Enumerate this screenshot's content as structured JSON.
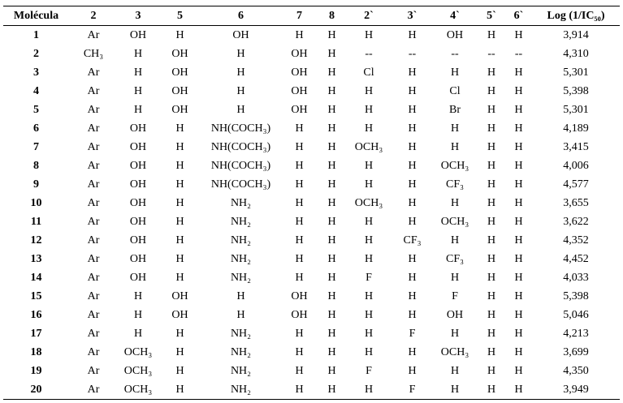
{
  "table": {
    "header": [
      "Molécula",
      "2",
      "3",
      "5",
      "6",
      "7",
      "8",
      "2`",
      "3`",
      "4`",
      "5`",
      "6`",
      "Log (1/IC₅₀)"
    ],
    "rows": [
      [
        "1",
        "Ar",
        "OH",
        "H",
        "OH",
        "H",
        "H",
        "H",
        "H",
        "OH",
        "H",
        "H",
        "3,914"
      ],
      [
        "2",
        "CH₃",
        "H",
        "OH",
        "H",
        "OH",
        "H",
        "--",
        "--",
        "--",
        "--",
        "--",
        "4,310"
      ],
      [
        "3",
        "Ar",
        "H",
        "OH",
        "H",
        "OH",
        "H",
        "Cl",
        "H",
        "H",
        "H",
        "H",
        "5,301"
      ],
      [
        "4",
        "Ar",
        "H",
        "OH",
        "H",
        "OH",
        "H",
        "H",
        "H",
        "Cl",
        "H",
        "H",
        "5,398"
      ],
      [
        "5",
        "Ar",
        "H",
        "OH",
        "H",
        "OH",
        "H",
        "H",
        "H",
        "Br",
        "H",
        "H",
        "5,301"
      ],
      [
        "6",
        "Ar",
        "OH",
        "H",
        "NH(COCH₃)",
        "H",
        "H",
        "H",
        "H",
        "H",
        "H",
        "H",
        "4,189"
      ],
      [
        "7",
        "Ar",
        "OH",
        "H",
        "NH(COCH₃)",
        "H",
        "H",
        "OCH₃",
        "H",
        "H",
        "H",
        "H",
        "3,415"
      ],
      [
        "8",
        "Ar",
        "OH",
        "H",
        "NH(COCH₃)",
        "H",
        "H",
        "H",
        "H",
        "OCH₃",
        "H",
        "H",
        "4,006"
      ],
      [
        "9",
        "Ar",
        "OH",
        "H",
        "NH(COCH₃)",
        "H",
        "H",
        "H",
        "H",
        "CF₃",
        "H",
        "H",
        "4,577"
      ],
      [
        "10",
        "Ar",
        "OH",
        "H",
        "NH₂",
        "H",
        "H",
        "OCH₃",
        "H",
        "H",
        "H",
        "H",
        "3,655"
      ],
      [
        "11",
        "Ar",
        "OH",
        "H",
        "NH₂",
        "H",
        "H",
        "H",
        "H",
        "OCH₃",
        "H",
        "H",
        "3,622"
      ],
      [
        "12",
        "Ar",
        "OH",
        "H",
        "NH₂",
        "H",
        "H",
        "H",
        "CF₃",
        "H",
        "H",
        "H",
        "4,352"
      ],
      [
        "13",
        "Ar",
        "OH",
        "H",
        "NH₂",
        "H",
        "H",
        "H",
        "H",
        "CF₃",
        "H",
        "H",
        "4,452"
      ],
      [
        "14",
        "Ar",
        "OH",
        "H",
        "NH₂",
        "H",
        "H",
        "F",
        "H",
        "H",
        "H",
        "H",
        "4,033"
      ],
      [
        "15",
        "Ar",
        "H",
        "OH",
        "H",
        "OH",
        "H",
        "H",
        "H",
        "F",
        "H",
        "H",
        "5,398"
      ],
      [
        "16",
        "Ar",
        "H",
        "OH",
        "H",
        "OH",
        "H",
        "H",
        "H",
        "OH",
        "H",
        "H",
        "5,046"
      ],
      [
        "17",
        "Ar",
        "H",
        "H",
        "NH₂",
        "H",
        "H",
        "H",
        "F",
        "H",
        "H",
        "H",
        "4,213"
      ],
      [
        "18",
        "Ar",
        "OCH₃",
        "H",
        "NH₂",
        "H",
        "H",
        "H",
        "H",
        "OCH₃",
        "H",
        "H",
        "3,699"
      ],
      [
        "19",
        "Ar",
        "OCH₃",
        "H",
        "NH₂",
        "H",
        "H",
        "F",
        "H",
        "H",
        "H",
        "H",
        "4,350"
      ],
      [
        "20",
        "Ar",
        "OCH₃",
        "H",
        "NH₂",
        "H",
        "H",
        "H",
        "F",
        "H",
        "H",
        "H",
        "3,949"
      ]
    ]
  }
}
